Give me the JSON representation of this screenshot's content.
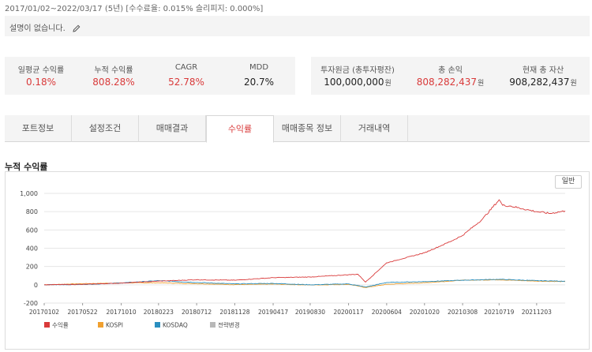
{
  "header": {
    "period": "2017/01/02~2022/03/17 (5년) [수수료율: 0.015% 슬리피지: 0.000%]",
    "description": "설명이 없습니다.",
    "edit_icon": "pencil-icon"
  },
  "stats_left": [
    {
      "label": "일평균 수익률",
      "value": "0.18%"
    },
    {
      "label": "누적 수익률",
      "value": "808.28%"
    },
    {
      "label": "CAGR",
      "value": "52.78%"
    },
    {
      "label": "MDD",
      "value": "20.7%"
    }
  ],
  "stats_right": [
    {
      "label": "투자원금 (총투자평잔)",
      "value": "100,000,000",
      "unit": "원"
    },
    {
      "label": "총 손익",
      "value": "808,282,437",
      "unit": "원"
    },
    {
      "label": "현재 총 자산",
      "value": "908,282,437",
      "unit": "원"
    }
  ],
  "tabs": [
    {
      "label": "포트정보",
      "active": false
    },
    {
      "label": "설정조건",
      "active": false
    },
    {
      "label": "매매결과",
      "active": false
    },
    {
      "label": "수익률",
      "active": true
    },
    {
      "label": "매매종목 정보",
      "active": false
    },
    {
      "label": "거래내역",
      "active": false
    }
  ],
  "chart_section": {
    "title": "누적 수익률",
    "mode_button": "일반"
  },
  "colors": {
    "accent_red": "#d93a3a",
    "return_line": "#d93a3a",
    "kospi_line": "#f0a030",
    "kosdaq_line": "#2a8fc0",
    "strategy_change": "#b8b8b8"
  },
  "chart_data": {
    "type": "line",
    "title": "누적 수익률",
    "xlabel": "",
    "ylabel": "",
    "ylim": [
      -200,
      1000
    ],
    "yticks": [
      -200,
      0,
      200,
      400,
      600,
      800,
      1000
    ],
    "ytick_labels": [
      "-200",
      "0",
      "200",
      "400",
      "600",
      "800",
      "1,000"
    ],
    "x_tick_labels": [
      "20170102",
      "20170522",
      "20171010",
      "20180223",
      "20180712",
      "20181128",
      "20190417",
      "20190830",
      "20200117",
      "20200604",
      "20201020",
      "20210308",
      "20210719",
      "20211203"
    ],
    "grid": true,
    "legend_position": "bottom-left",
    "series": [
      {
        "name": "수익률",
        "color": "#d93a3a",
        "x": [
          "20170102",
          "20170522",
          "20171010",
          "20180223",
          "20180712",
          "20181128",
          "20190417",
          "20190830",
          "20200117",
          "20200220",
          "20200319",
          "20200604",
          "20201020",
          "20210120",
          "20210308",
          "20210520",
          "20210719",
          "20210801",
          "20210901",
          "20211015",
          "20211203",
          "20220120",
          "20220317"
        ],
        "values": [
          0,
          5,
          18,
          40,
          55,
          50,
          78,
          85,
          110,
          115,
          30,
          240,
          350,
          470,
          540,
          720,
          930,
          870,
          860,
          830,
          800,
          780,
          808
        ]
      },
      {
        "name": "KOSPI",
        "color": "#f0a030",
        "x": [
          "20170102",
          "20170522",
          "20171010",
          "20180223",
          "20180712",
          "20181128",
          "20190417",
          "20190830",
          "20200117",
          "20200319",
          "20200604",
          "20201020",
          "20210308",
          "20210719",
          "20211203",
          "20220317"
        ],
        "values": [
          0,
          12,
          20,
          22,
          12,
          2,
          8,
          -2,
          5,
          -30,
          5,
          22,
          50,
          55,
          40,
          35
        ]
      },
      {
        "name": "KOSDAQ",
        "color": "#2a8fc0",
        "x": [
          "20170102",
          "20170522",
          "20171010",
          "20180223",
          "20180712",
          "20181128",
          "20190417",
          "20190830",
          "20200117",
          "20200319",
          "20200604",
          "20201020",
          "20210308",
          "20210719",
          "20211203",
          "20220317"
        ],
        "values": [
          0,
          3,
          20,
          45,
          25,
          10,
          15,
          0,
          10,
          -25,
          25,
          35,
          50,
          60,
          45,
          40
        ]
      },
      {
        "name": "전략변경",
        "color": "#b8b8b8",
        "x": [],
        "values": []
      }
    ]
  }
}
